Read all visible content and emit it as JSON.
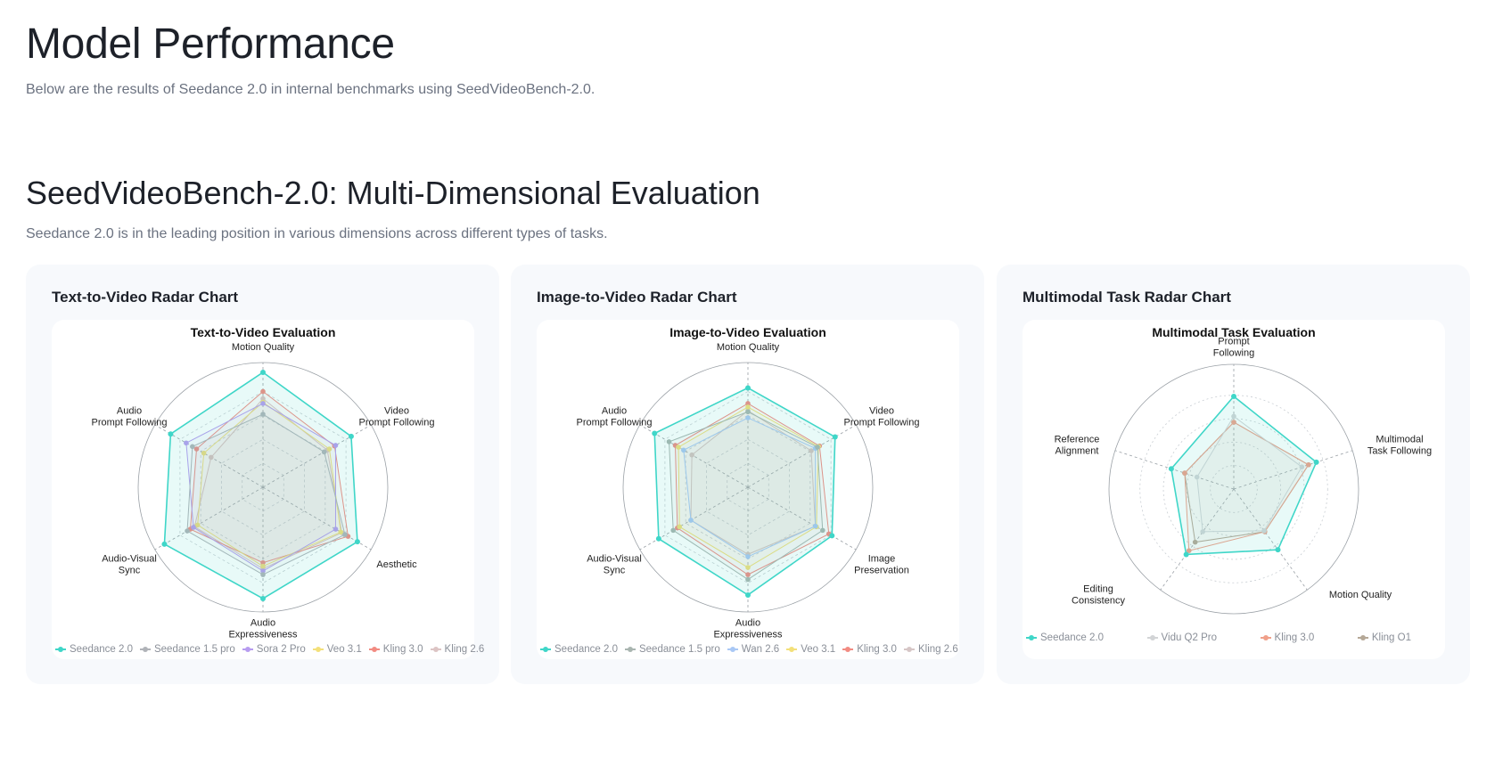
{
  "page": {
    "title": "Model Performance",
    "subtitle": "Below are the results of Seedance 2.0 in internal benchmarks using SeedVideoBench-2.0.",
    "section_title": "SeedVideoBench-2.0: Multi-Dimensional Evaluation",
    "section_subtitle": "Seedance 2.0 is in the leading position in various dimensions across different types of tasks."
  },
  "cards": [
    {
      "title": "Text-to-Video Radar Chart"
    },
    {
      "title": "Image-to-Video Radar Chart"
    },
    {
      "title": "Multimodal Task Radar Chart"
    }
  ],
  "chart_data": [
    {
      "type": "radar",
      "title": "Text-to-Video Evaluation",
      "axes": [
        "Motion Quality",
        "Video Prompt Following",
        "Aesthetic",
        "Audio Expressiveness",
        "Audio-Visual Sync",
        "Audio Prompt Following"
      ],
      "rlim": [
        0,
        100
      ],
      "grid": "hexagon",
      "legend": "bottom",
      "series": [
        {
          "name": "Seedance 2.0",
          "color": "#3fd6c8",
          "values": [
            96,
            85,
            91,
            93,
            95,
            89
          ]
        },
        {
          "name": "Seedance 1.5 pro",
          "color": "#b0b3b8",
          "values": [
            61,
            59,
            79,
            73,
            73,
            68
          ]
        },
        {
          "name": "Sora 2 Pro",
          "color": "#b79cf0",
          "values": [
            70,
            70,
            70,
            70,
            67,
            74
          ]
        },
        {
          "name": "Veo 3.1",
          "color": "#f3e07a",
          "values": [
            71,
            64,
            75,
            66,
            63,
            57
          ]
        },
        {
          "name": "Kling 3.0",
          "color": "#f28b82",
          "values": [
            80,
            69,
            82,
            63,
            70,
            64
          ]
        },
        {
          "name": "Kling 2.6",
          "color": "#dcc4c4",
          "values": [
            74,
            62,
            76,
            68,
            66,
            50
          ]
        }
      ]
    },
    {
      "type": "radar",
      "title": "Image-to-Video Evaluation",
      "axes": [
        "Motion Quality",
        "Video Prompt Following",
        "Image Preservation",
        "Audio Expressiveness",
        "Audio-Visual Sync",
        "Audio Prompt Following"
      ],
      "rlim": [
        0,
        100
      ],
      "grid": "hexagon",
      "legend": "bottom",
      "series": [
        {
          "name": "Seedance 2.0",
          "color": "#3fd6c8",
          "values": [
            83,
            84,
            81,
            90,
            86,
            90
          ]
        },
        {
          "name": "Seedance 1.5 pro",
          "color": "#a9b5b0",
          "values": [
            63,
            67,
            72,
            77,
            72,
            76
          ]
        },
        {
          "name": "Wan 2.6",
          "color": "#a9c8f5",
          "values": [
            58,
            65,
            65,
            58,
            55,
            62
          ]
        },
        {
          "name": "Veo 3.1",
          "color": "#f3e07a",
          "values": [
            67,
            68,
            66,
            67,
            66,
            67
          ]
        },
        {
          "name": "Kling 3.0",
          "color": "#f28b82",
          "values": [
            70,
            69,
            78,
            73,
            68,
            70
          ]
        },
        {
          "name": "Kling 2.6",
          "color": "#d6c6c6",
          "values": [
            64,
            61,
            65,
            56,
            55,
            54
          ]
        }
      ]
    },
    {
      "type": "radar",
      "title": "Multimodal Task Evaluation",
      "axes": [
        "Prompt Following",
        "Multimodal Task Following",
        "Motion Quality",
        "Editing Consistency",
        "Reference Alignment"
      ],
      "rlim": [
        0,
        100
      ],
      "grid": "circle",
      "legend": "bottom",
      "series": [
        {
          "name": "Seedance 2.0",
          "color": "#3fd6c8",
          "values": [
            79,
            74,
            64,
            69,
            56
          ]
        },
        {
          "name": "Vidu Q2 Pro",
          "color": "#d2d4d6",
          "values": [
            62,
            61,
            44,
            45,
            33
          ]
        },
        {
          "name": "Kling 3.0",
          "color": "#f0a08a",
          "values": [
            57,
            67,
            45,
            65,
            44
          ]
        },
        {
          "name": "Kling O1",
          "color": "#b5a897",
          "values": [
            57,
            67,
            45,
            56,
            44
          ]
        }
      ]
    }
  ]
}
